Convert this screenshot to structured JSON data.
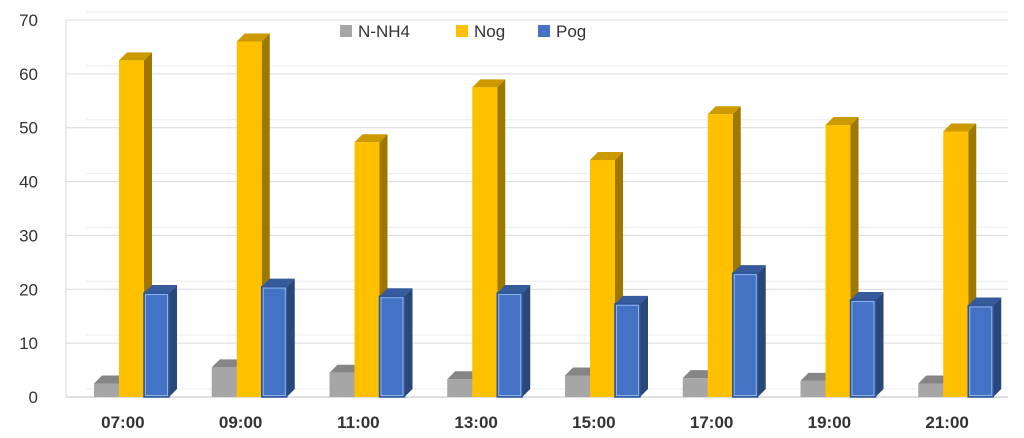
{
  "chart_data": {
    "type": "bar",
    "categories": [
      "07:00",
      "09:00",
      "11:00",
      "13:00",
      "15:00",
      "17:00",
      "19:00",
      "21:00"
    ],
    "series": [
      {
        "name": "N-NH4",
        "values": [
          2.5,
          5.5,
          4.5,
          3.3,
          4.0,
          3.5,
          3.0,
          2.5
        ],
        "color": "#a6a6a6"
      },
      {
        "name": "Nog",
        "values": [
          62.5,
          66.0,
          47.3,
          57.5,
          44.0,
          52.5,
          50.5,
          49.3
        ],
        "color": "#ffc000"
      },
      {
        "name": "Pog",
        "values": [
          19.3,
          20.5,
          18.7,
          19.3,
          17.3,
          23.0,
          18.0,
          17.0
        ],
        "color": "#4472c4"
      }
    ],
    "yticks": [
      "0",
      "10",
      "20",
      "30",
      "40",
      "50",
      "60",
      "70"
    ],
    "ylim": [
      0,
      70
    ],
    "grid": true,
    "legend": "top-center",
    "style": "3d-column"
  }
}
